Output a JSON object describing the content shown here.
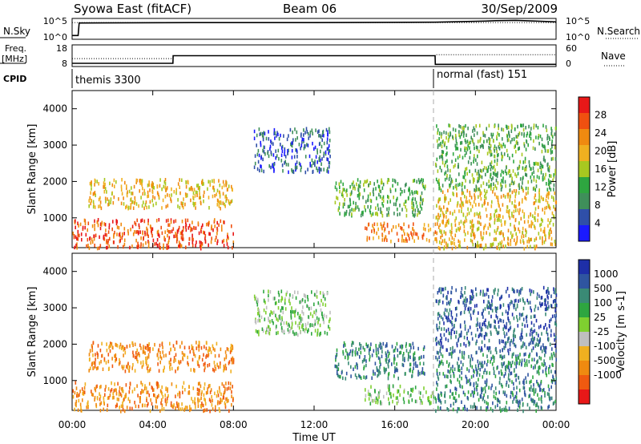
{
  "header": {
    "station": "Syowa East (fitACF)",
    "beam": "Beam 06",
    "date": "30/Sep/2009"
  },
  "top_panel": {
    "left_label": "N.Sky",
    "right_label": "N.Search",
    "left_ticks": [
      "10^5",
      "10^0"
    ],
    "right_ticks": [
      "10^5",
      "10^0"
    ]
  },
  "freq_panel": {
    "left_label_1": "Freq.",
    "left_label_2": "[MHz]",
    "right_label": "Nave",
    "left_ticks": [
      "18",
      "8"
    ],
    "right_ticks": [
      "60",
      "0"
    ]
  },
  "cpid_panel": {
    "label": "CPID",
    "mode_1": "themis 3300",
    "mode_2": "normal (fast) 151"
  },
  "x_axis": {
    "label": "Time UT",
    "ticks": [
      "00:00",
      "04:00",
      "08:00",
      "12:00",
      "16:00",
      "20:00",
      "00:00"
    ]
  },
  "colors": {
    "power": [
      "#1a1aff",
      "#2f4fa8",
      "#3f8f5a",
      "#2ea640",
      "#a8c820",
      "#f0b020",
      "#f08a10",
      "#f05010",
      "#e81818"
    ],
    "velocity": [
      "#1e2fa8",
      "#2f55a0",
      "#3a8a75",
      "#2ea640",
      "#7fd030",
      "#bfbfbf",
      "#f0b020",
      "#f08a10",
      "#f05a10",
      "#e81818"
    ]
  },
  "chart_data": [
    {
      "type": "line",
      "title": "N.Sky / N.Search",
      "x_range_hours": [
        0,
        24
      ],
      "series": [
        {
          "name": "N.Sky",
          "x": [
            0.0,
            0.3,
            0.35,
            6,
            12,
            18,
            20.5,
            21,
            22,
            23,
            24
          ],
          "y": [
            1.0,
            1.0,
            4.3,
            4.4,
            4.4,
            4.5,
            4.8,
            4.9,
            5.0,
            4.8,
            4.6
          ]
        },
        {
          "name": "N.Search",
          "x": [
            0,
            24
          ],
          "y": [
            4.4,
            4.4
          ]
        }
      ]
    },
    {
      "type": "line",
      "title": "Freq. [MHz] / Nave",
      "x_range_hours": [
        0,
        24
      ],
      "series": [
        {
          "name": "Freq.",
          "x": [
            0,
            5,
            5.01,
            18,
            18.01,
            24
          ],
          "y": [
            9.5,
            9.5,
            13.0,
            13.0,
            9.0,
            9.0
          ]
        },
        {
          "name": "Nave",
          "x": [
            0,
            5,
            5.01,
            18,
            18.01,
            24
          ],
          "y": [
            22,
            22,
            30,
            30,
            33,
            33
          ]
        }
      ],
      "y_range_left": [
        8,
        18
      ],
      "y_range_right": [
        0,
        60
      ]
    },
    {
      "type": "heatmap",
      "title": "Power [dB]",
      "ylabel": "Slant Range [km]",
      "y_range": [
        180,
        4500
      ],
      "yticks": [
        1000,
        2000,
        3000,
        4000
      ],
      "colorbar_label": "Power [dB]",
      "colorbar_ticks": [
        4,
        8,
        12,
        16,
        20,
        24,
        28
      ],
      "scatter_regions": [
        {
          "t_start": 0.0,
          "t_end": 8.0,
          "r_low": 200,
          "r_high": 1000,
          "level": 7
        },
        {
          "t_start": 0.8,
          "t_end": 8.0,
          "r_low": 1300,
          "r_high": 2100,
          "level": 5
        },
        {
          "t_start": 9.0,
          "t_end": 12.8,
          "r_low": 2300,
          "r_high": 3500,
          "level": 1
        },
        {
          "t_start": 13.0,
          "t_end": 17.5,
          "r_low": 1100,
          "r_high": 2100,
          "level": 3
        },
        {
          "t_start": 14.5,
          "t_end": 18.0,
          "r_low": 400,
          "r_high": 900,
          "level": 6
        },
        {
          "t_start": 18.0,
          "t_end": 24.0,
          "r_low": 200,
          "r_high": 1800,
          "level": 5
        },
        {
          "t_start": 18.0,
          "t_end": 24.0,
          "r_low": 1800,
          "r_high": 3600,
          "level": 3
        }
      ]
    },
    {
      "type": "heatmap",
      "title": "Velocity [m s-1]",
      "ylabel": "Slant Range [km]",
      "y_range": [
        180,
        4500
      ],
      "yticks": [
        1000,
        2000,
        3000,
        4000
      ],
      "colorbar_label": "Velocity [m s-1]",
      "colorbar_ticks": [
        1000,
        500,
        100,
        25,
        -25,
        -100,
        -500,
        -1000
      ],
      "scatter_regions": [
        {
          "t_start": 0.0,
          "t_end": 8.0,
          "r_low": 200,
          "r_high": 1000,
          "level": 7
        },
        {
          "t_start": 0.8,
          "t_end": 8.0,
          "r_low": 1300,
          "r_high": 2100,
          "level": 7
        },
        {
          "t_start": 9.0,
          "t_end": 12.8,
          "r_low": 2300,
          "r_high": 3500,
          "level": 4
        },
        {
          "t_start": 13.0,
          "t_end": 17.5,
          "r_low": 1100,
          "r_high": 2100,
          "level": 2
        },
        {
          "t_start": 14.5,
          "t_end": 18.0,
          "r_low": 400,
          "r_high": 900,
          "level": 4
        },
        {
          "t_start": 18.0,
          "t_end": 24.0,
          "r_low": 200,
          "r_high": 1800,
          "level": 2
        },
        {
          "t_start": 18.0,
          "t_end": 24.0,
          "r_low": 1800,
          "r_high": 3600,
          "level": 1
        }
      ]
    }
  ]
}
